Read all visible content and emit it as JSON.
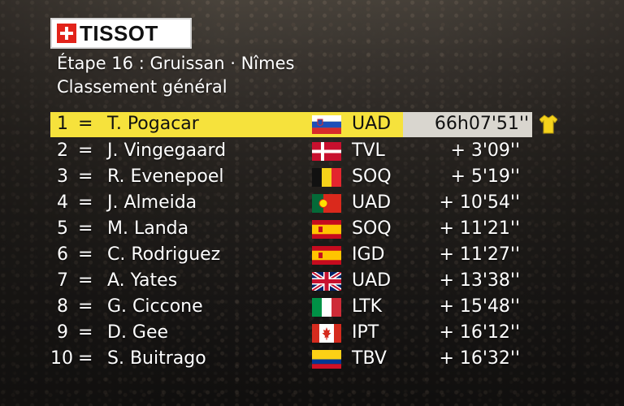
{
  "branding": {
    "logo_text": "TISSOT",
    "logo_icon": "tissot-cross-icon",
    "brand_color": "#e2231a"
  },
  "header": {
    "stage": "Étape 16 : Gruissan · Nîmes",
    "subtitle": "Classement général"
  },
  "colors": {
    "leader_band": "#f6e23c",
    "leader_time_box": "#d9d6cf",
    "text": "#ffffff"
  },
  "standings": [
    {
      "rank": "1",
      "change": "=",
      "rider": "T. Pogacar",
      "flag": "slovenia-flag",
      "team": "UAD",
      "time": "66h07'51''"
    },
    {
      "rank": "2",
      "change": "=",
      "rider": "J. Vingegaard",
      "flag": "denmark-flag",
      "team": "TVL",
      "time": "+ 3'09''"
    },
    {
      "rank": "3",
      "change": "=",
      "rider": "R. Evenepoel",
      "flag": "belgium-flag",
      "team": "SOQ",
      "time": "+ 5'19''"
    },
    {
      "rank": "4",
      "change": "=",
      "rider": "J. Almeida",
      "flag": "portugal-flag",
      "team": "UAD",
      "time": "+ 10'54''"
    },
    {
      "rank": "5",
      "change": "=",
      "rider": "M. Landa",
      "flag": "spain-flag",
      "team": "SOQ",
      "time": "+ 11'21''"
    },
    {
      "rank": "6",
      "change": "=",
      "rider": "C. Rodriguez",
      "flag": "spain-flag",
      "team": "IGD",
      "time": "+ 11'27''"
    },
    {
      "rank": "7",
      "change": "=",
      "rider": "A. Yates",
      "flag": "uk-flag",
      "team": "UAD",
      "time": "+ 13'38''"
    },
    {
      "rank": "8",
      "change": "=",
      "rider": "G. Ciccone",
      "flag": "italy-flag",
      "team": "LTK",
      "time": "+ 15'48''"
    },
    {
      "rank": "9",
      "change": "=",
      "rider": "D. Gee",
      "flag": "canada-flag",
      "team": "IPT",
      "time": "+ 16'12''"
    },
    {
      "rank": "10",
      "change": "=",
      "rider": "S. Buitrago",
      "flag": "colombia-flag",
      "team": "TBV",
      "time": "+ 16'32''"
    }
  ]
}
